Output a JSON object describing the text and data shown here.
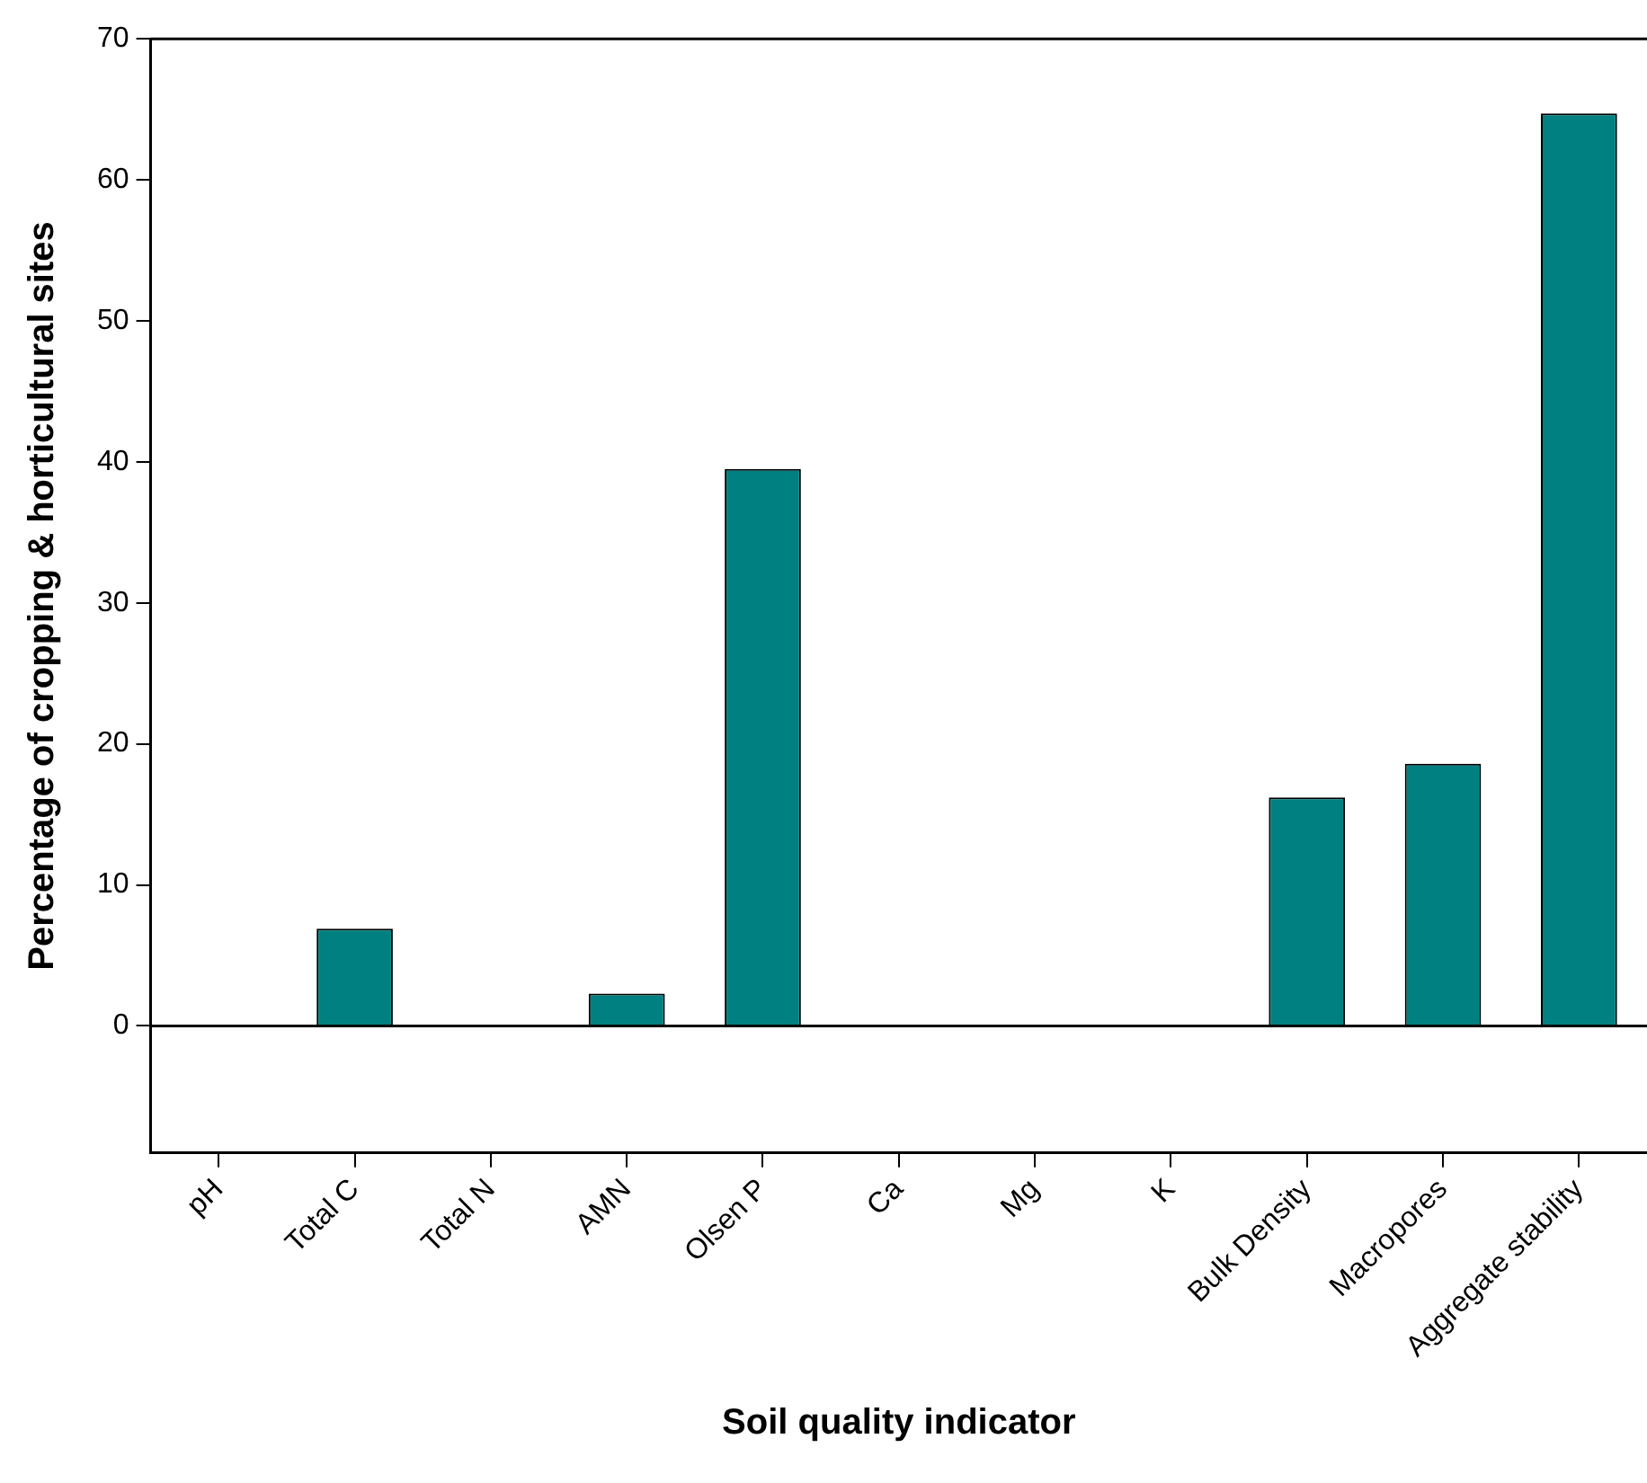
{
  "chart_data": {
    "type": "bar",
    "xlabel": "Soil quality indicator",
    "ylabel": "Percentage of cropping & horticultural sites",
    "categories": [
      "pH",
      "Total C",
      "Total N",
      "AMN",
      "Olsen P",
      "Ca",
      "Mg",
      "K",
      "Bulk Density",
      "Macropores",
      "Aggregate stability"
    ],
    "values": [
      0,
      6.9,
      0,
      2.3,
      39.5,
      0,
      0,
      0,
      16.2,
      18.6,
      64.7
    ],
    "color": "#008080",
    "ylim": [
      -9,
      70
    ],
    "yticks": [
      0,
      10,
      20,
      30,
      40,
      50,
      60,
      70
    ],
    "grid": false,
    "legend": false,
    "ref_lines": [
      {
        "axis": "y",
        "value": 0,
        "color": "#000000"
      }
    ]
  }
}
